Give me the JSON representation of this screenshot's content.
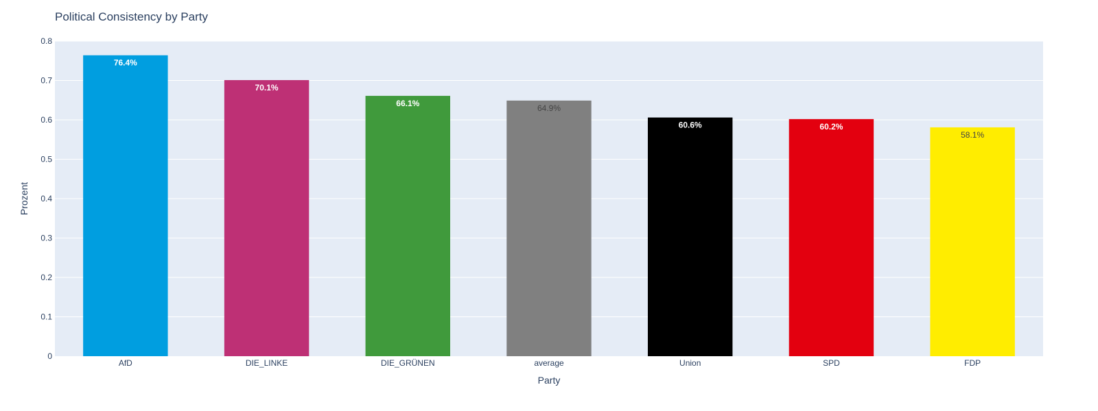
{
  "chart_data": {
    "type": "bar",
    "title": "Political Consistency by Party",
    "xlabel": "Party",
    "ylabel": "Prozent",
    "categories": [
      "AfD",
      "DIE_LINKE",
      "DIE_GRÜNEN",
      "average",
      "Union",
      "SPD",
      "FDP"
    ],
    "values": [
      0.764,
      0.701,
      0.661,
      0.649,
      0.606,
      0.602,
      0.581
    ],
    "data_labels": [
      "76.4%",
      "70.1%",
      "66.1%",
      "64.9%",
      "60.6%",
      "60.2%",
      "58.1%"
    ],
    "colors": [
      "#009ee0",
      "#be3075",
      "#409a3c",
      "#808080",
      "#000000",
      "#e3000f",
      "#ffed00"
    ],
    "label_colors": [
      "#ffffff",
      "#ffffff",
      "#ffffff",
      "#444444",
      "#ffffff",
      "#ffffff",
      "#444444"
    ],
    "label_bold": [
      true,
      true,
      true,
      false,
      true,
      true,
      false
    ],
    "ylim": [
      0,
      0.8
    ],
    "yticks": [
      0,
      0.1,
      0.2,
      0.3,
      0.4,
      0.5,
      0.6,
      0.7,
      0.8
    ],
    "ytick_labels": [
      "0",
      "0.1",
      "0.2",
      "0.3",
      "0.4",
      "0.5",
      "0.6",
      "0.7",
      "0.8"
    ],
    "grid": true,
    "plot_background": "#e5ecf6",
    "grid_color": "#ffffff"
  }
}
